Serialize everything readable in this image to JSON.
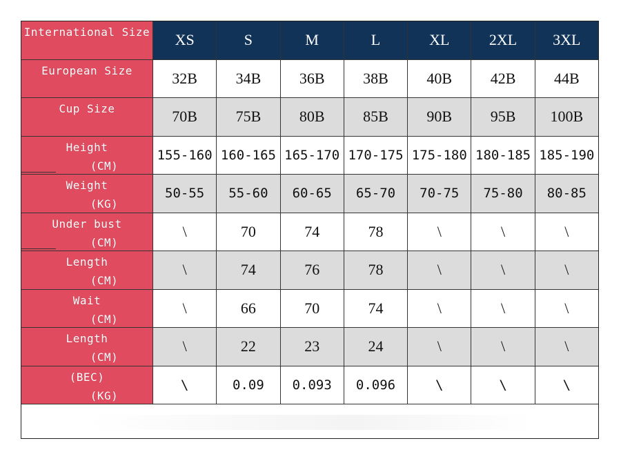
{
  "table": {
    "header": {
      "label": "International Size",
      "sizes": [
        "XS",
        "S",
        "M",
        "L",
        "XL",
        "2XL",
        "3XL"
      ]
    },
    "rows": [
      {
        "label_line1": "European Size",
        "label_line2": "",
        "values": [
          "32B",
          "34B",
          "36B",
          "38B",
          "40B",
          "42B",
          "44B"
        ]
      },
      {
        "label_line1": "Cup Size",
        "label_line2": "",
        "values": [
          "70B",
          "75B",
          "80B",
          "85B",
          "90B",
          "95B",
          "100B"
        ]
      },
      {
        "label_line1": "Height",
        "label_line2": "(CM)",
        "values": [
          "155-160",
          "160-165",
          "165-170",
          "170-175",
          "175-180",
          "180-185",
          "185-190"
        ]
      },
      {
        "label_line1": "Weight",
        "label_line2": "(KG)",
        "values": [
          "50-55",
          "55-60",
          "60-65",
          "65-70",
          "70-75",
          "75-80",
          "80-85"
        ]
      },
      {
        "label_line1": "Under bust",
        "label_line2": "(CM)",
        "values": [
          "\\",
          "70",
          "74",
          "78",
          "\\",
          "\\",
          "\\"
        ]
      },
      {
        "label_line1": "Length",
        "label_line2": "(CM)",
        "values": [
          "\\",
          "74",
          "76",
          "78",
          "\\",
          "\\",
          "\\"
        ]
      },
      {
        "label_line1": "Wait",
        "label_line2": "(CM)",
        "values": [
          "\\",
          "66",
          "70",
          "74",
          "\\",
          "\\",
          "\\"
        ]
      },
      {
        "label_line1": "Length",
        "label_line2": "(CM)",
        "values": [
          "\\",
          "22",
          "23",
          "24",
          "\\",
          "\\",
          "\\"
        ]
      },
      {
        "label_line1": "(BEC)",
        "label_line2": "(KG)",
        "values": [
          "\\",
          "0.09",
          "0.093",
          "0.096",
          "\\",
          "\\",
          "\\"
        ]
      }
    ]
  },
  "colors": {
    "label_column": "#e04b5f",
    "header_row": "#123358",
    "shaded_row": "#dcdcdc"
  }
}
